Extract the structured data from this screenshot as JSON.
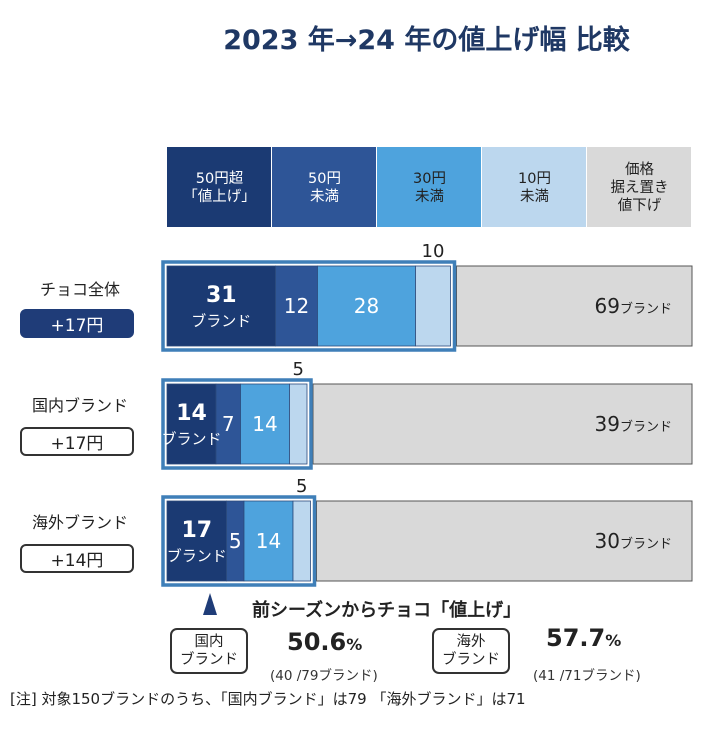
{
  "chart_data": {
    "type": "bar",
    "orientation": "horizontal-stacked",
    "title": "2023 年→24 年の値上げ幅  比較",
    "categories": [
      {
        "name": "50円超「値上げ」",
        "lines": [
          "50円超",
          "「値上げ」"
        ],
        "color": "#1b3a73"
      },
      {
        "name": "50円未満",
        "lines": [
          "50円",
          "未満"
        ],
        "color": "#2e5597"
      },
      {
        "name": "30円未満",
        "lines": [
          "30円",
          "未満"
        ],
        "color": "#4ea3dd"
      },
      {
        "name": "10円未満",
        "lines": [
          "10円",
          "未満"
        ],
        "color": "#bcd7ee"
      },
      {
        "name": "価格据え置き値下げ",
        "lines": [
          "価格",
          "据え置き",
          "値下げ"
        ],
        "color": "#d9d9d9"
      }
    ],
    "series": [
      {
        "name": "チョコ全体",
        "badge": "+17円",
        "badge_filled": true,
        "values": [
          31,
          12,
          28,
          10,
          69
        ],
        "labels": [
          "31",
          "12",
          "28",
          "10",
          "69"
        ],
        "first_sub": "ブランド",
        "other_suffix": "ブランド"
      },
      {
        "name": "国内ブランド",
        "badge": "+17円",
        "badge_filled": false,
        "values": [
          14,
          7,
          14,
          5,
          39
        ],
        "labels": [
          "14",
          "7",
          "14",
          "5",
          "39"
        ],
        "first_sub": "ブランド",
        "other_suffix": "ブランド"
      },
      {
        "name": "海外ブランド",
        "badge": "+14円",
        "badge_filled": false,
        "values": [
          17,
          5,
          14,
          5,
          30
        ],
        "labels": [
          "17",
          "5",
          "14",
          "5",
          "30"
        ],
        "first_sub": "ブランド",
        "other_suffix": "ブランド"
      }
    ]
  },
  "summary": {
    "heading": "前シーズンからチョコ「値上げ」",
    "domestic": {
      "box_line1": "国内",
      "box_line2": "ブランド",
      "pct": "50.6",
      "unit": "%",
      "detail": "(40 /79ブランド)"
    },
    "foreign": {
      "box_line1": "海外",
      "box_line2": "ブランド",
      "pct": "57.7",
      "unit": "%",
      "detail": "(41 /71ブランド)"
    }
  },
  "note": "[注] 対象150ブランドのうち、「国内ブランド」は79 「海外ブランド」は71"
}
